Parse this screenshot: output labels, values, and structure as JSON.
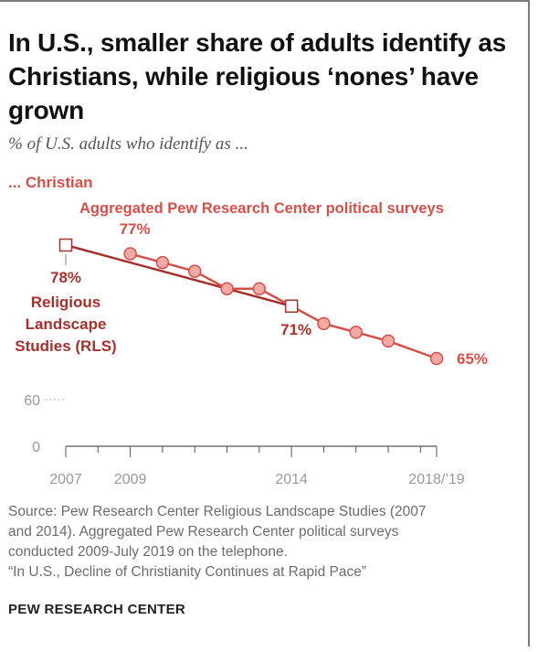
{
  "title": "In U.S., smaller share of adults identify as Christians, while religious ‘nones’ have grown",
  "subtitle": "% of U.S. adults who identify as ...",
  "colors": {
    "aggregated": "#d4504a",
    "aggregated_fill": "#f2a9a4",
    "rls": "#a3312c",
    "axis": "#555555",
    "tick_label": "#999999"
  },
  "chart_data": {
    "type": "line",
    "title": "... Christian",
    "x": [
      2007,
      2009,
      2010,
      2011,
      2012,
      2013,
      2014,
      2015,
      2016,
      2017,
      2018.5
    ],
    "xlim": [
      2007,
      2018.5
    ],
    "ylim": [
      0,
      80
    ],
    "series": [
      {
        "name": "Aggregated Pew Research Center political surveys",
        "x": [
          2009,
          2010,
          2011,
          2012,
          2013,
          2014,
          2015,
          2016,
          2017,
          2018.5
        ],
        "values": [
          77,
          76,
          75,
          73,
          73,
          71,
          69,
          68,
          67,
          65
        ]
      },
      {
        "name": "Religious Landscape Studies (RLS)",
        "x": [
          2007,
          2014
        ],
        "values": [
          78,
          71
        ]
      }
    ],
    "x_tick_labels": [
      {
        "x": 2007,
        "label": "2007"
      },
      {
        "x": 2009,
        "label": "2009"
      },
      {
        "x": 2014,
        "label": "2014"
      },
      {
        "x": 2018.5,
        "label": "2018/’19"
      }
    ],
    "y_tick_labels": [
      {
        "y": 60,
        "label": "60"
      },
      {
        "y": 0,
        "label": "0"
      }
    ],
    "data_labels": {
      "agg_start": "77%",
      "agg_end": "65%",
      "rls_start": "78%",
      "rls_end": "71%"
    },
    "rls_label_lines": [
      "Religious",
      "Landscape",
      "Studies (RLS)"
    ],
    "agg_label": "Aggregated Pew Research Center political surveys"
  },
  "footer": {
    "source_lines": [
      "Source: Pew Research Center Religious Landscape Studies (2007",
      "and 2014). Aggregated Pew Research Center political surveys",
      "conducted 2009-July 2019 on the telephone.",
      "“In U.S., Decline of Christianity Continues at Rapid Pace”"
    ],
    "brand": "PEW RESEARCH CENTER"
  }
}
